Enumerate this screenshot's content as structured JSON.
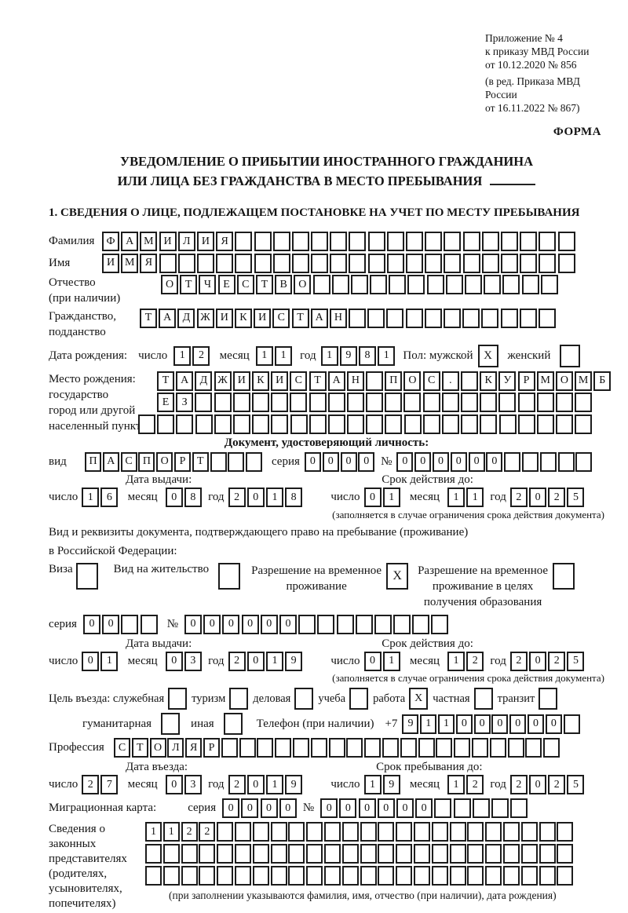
{
  "page": {
    "annex": [
      "Приложение № 4",
      "к приказу МВД России",
      "от 10.12.2020 № 856",
      "(в ред. Приказа МВД России",
      "от 16.11.2022 № 867)"
    ],
    "form_word": "ФОРМА",
    "title1": "УВЕДОМЛЕНИЕ О ПРИБЫТИИ ИНОСТРАННОГО ГРАЖДАНИНА",
    "title2": "ИЛИ ЛИЦА БЕЗ ГРАЖДАНСТВА В МЕСТО ПРЕБЫВАНИЯ",
    "section1_heading": "1. СВЕДЕНИЯ О ЛИЦЕ, ПОДЛЕЖАЩЕМ ПОСТАНОВКЕ НА УЧЕТ ПО МЕСТУ ПРЕБЫВАНИЯ"
  },
  "labels": {
    "surname": "Фамилия",
    "given_name": "Имя",
    "patronymic": "Отчество",
    "patronymic_note": "(при наличии)",
    "citizenship_1": "Гражданство,",
    "citizenship_2": "подданство",
    "birth_date": "Дата рождения:",
    "day": "число",
    "month": "месяц",
    "year": "год",
    "sex": "Пол: мужской",
    "female": "женский",
    "birth_place": "Место рождения:",
    "birth_place_sub1": "государство",
    "birth_place_sub2": "город или другой",
    "birth_place_sub3": "населенный пункт",
    "id_doc_heading": "Документ, удостоверяющий личность:",
    "doc_type": "вид",
    "series": "серия",
    "number": "№",
    "issue_date": "Дата выдачи:",
    "expiry_date": "Срок действия до:",
    "expiry_note": "(заполняется в случае ограничения срока действия документа)",
    "res_doc_line1": "Вид и реквизиты документа, подтверждающего право на пребывание (проживание)",
    "res_doc_line2": "в Российской Федерации:",
    "visa": "Виза",
    "residence_permit": "Вид на жительство",
    "temp_residence_1": "Разрешение на временное",
    "temp_residence_2": "проживание",
    "temp_residence_edu_1": "Разрешение на временное",
    "temp_residence_edu_2": "проживание в целях",
    "temp_residence_edu_3": "получения образования",
    "purpose": "Цель въезда: служебная",
    "purpose_tourism": "туризм",
    "purpose_business": "деловая",
    "purpose_study": "учеба",
    "purpose_work": "работа",
    "purpose_private": "частная",
    "purpose_transit": "транзит",
    "purpose_humanitarian": "гуманитарная",
    "purpose_other": "иная",
    "phone": "Телефон (при наличии)",
    "phone_prefix": "+7",
    "profession": "Профессия",
    "entry_date": "Дата въезда:",
    "stay_until": "Срок пребывания до:",
    "migration_card": "Миграционная карта:",
    "representatives": [
      "Сведения о",
      "законных",
      "представителях",
      "(родителях,",
      "усыновителях,",
      "попечителях)"
    ],
    "representatives_note": "(при заполнении указываются фамилия, имя, отчество (при наличии), дата рождения)"
  },
  "boxes": {
    "surname": {
      "v": "ФАМИЛИЯ",
      "n": 25
    },
    "given_name": {
      "v": "ИМЯ",
      "n": 25
    },
    "patronymic": {
      "v": "ОТЧЕСТВО",
      "n": 21
    },
    "citizenship": {
      "v": "ТАДЖИКИСТАН",
      "n": 22
    },
    "birth_day": {
      "v": "12",
      "n": 2
    },
    "birth_month": {
      "v": "11",
      "n": 2
    },
    "birth_year": {
      "v": "1981",
      "n": 4
    },
    "sex_male": {
      "v": "X",
      "n": 1
    },
    "sex_female": {
      "v": "",
      "n": 1
    },
    "birth_place_1": {
      "v": "ТАДЖИКИСТАН ПОС. КУРМОМБ",
      "n": 24
    },
    "birth_place_2": {
      "v": "ЕЗ",
      "n": 23
    },
    "birth_place_3": {
      "v": "",
      "n": 24
    },
    "id_doc_type": {
      "v": "ПАСПОРТ",
      "n": 10
    },
    "id_series": {
      "v": "0000",
      "n": 4
    },
    "id_number": {
      "v": "000000",
      "n": 11
    },
    "id_issue_day": {
      "v": "16",
      "n": 2
    },
    "id_issue_month": {
      "v": "08",
      "n": 2
    },
    "id_issue_year": {
      "v": "2018",
      "n": 4
    },
    "id_expiry_day": {
      "v": "01",
      "n": 2
    },
    "id_expiry_month": {
      "v": "11",
      "n": 2
    },
    "id_expiry_year": {
      "v": "2025",
      "n": 4
    },
    "cb_visa": {
      "v": "",
      "n": 1
    },
    "cb_residence_permit": {
      "v": "",
      "n": 1
    },
    "cb_temp_residence": {
      "v": "X",
      "n": 1
    },
    "cb_temp_residence_edu": {
      "v": "",
      "n": 1
    },
    "res_series": {
      "v": "00",
      "n": 4
    },
    "res_number": {
      "v": "000000",
      "n": 14
    },
    "res_issue_day": {
      "v": "01",
      "n": 2
    },
    "res_issue_month": {
      "v": "03",
      "n": 2
    },
    "res_issue_year": {
      "v": "2019",
      "n": 4
    },
    "res_expiry_day": {
      "v": "01",
      "n": 2
    },
    "res_expiry_month": {
      "v": "12",
      "n": 2
    },
    "res_expiry_year": {
      "v": "2025",
      "n": 4
    },
    "cb_official": {
      "v": "",
      "n": 1
    },
    "cb_tourism": {
      "v": "",
      "n": 1
    },
    "cb_business": {
      "v": "",
      "n": 1
    },
    "cb_study": {
      "v": "",
      "n": 1
    },
    "cb_work": {
      "v": "X",
      "n": 1
    },
    "cb_private": {
      "v": "",
      "n": 1
    },
    "cb_transit": {
      "v": "",
      "n": 1
    },
    "cb_humanitarian": {
      "v": "",
      "n": 1
    },
    "cb_other": {
      "v": "",
      "n": 1
    },
    "phone": {
      "v": "911000000",
      "n": 10
    },
    "profession": {
      "v": "СТОЛЯР",
      "n": 25
    },
    "entry_day": {
      "v": "27",
      "n": 2
    },
    "entry_month": {
      "v": "03",
      "n": 2
    },
    "entry_year": {
      "v": "2019",
      "n": 4
    },
    "stay_day": {
      "v": "19",
      "n": 2
    },
    "stay_month": {
      "v": "12",
      "n": 2
    },
    "stay_year": {
      "v": "2025",
      "n": 4
    },
    "mig_series": {
      "v": "0000",
      "n": 4
    },
    "mig_number": {
      "v": "000000",
      "n": 11
    },
    "rep_1": {
      "v": "1122",
      "n": 24
    },
    "rep_2": {
      "v": "",
      "n": 24
    },
    "rep_3": {
      "v": "",
      "n": 24
    }
  }
}
